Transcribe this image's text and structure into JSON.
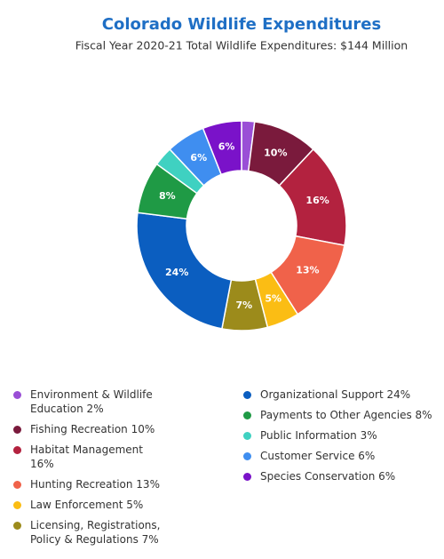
{
  "chart_data": {
    "type": "donut",
    "title": "Colorado Wildlife Expenditures",
    "subtitle": "Fiscal Year 2020-21 Total Wildlife Expenditures: $144 Million",
    "categories": [
      "Environment & Wildlife Education 2%",
      "Fishing Recreation 10%",
      "Habitat Management 16%",
      "Hunting Recreation 13%",
      "Law Enforcement 5%",
      "Licensing, Registrations, Policy & Regulations 7%",
      "Organizational Support 24%",
      "Payments to Other Agencies 8%",
      "Public Information 3%",
      "Customer Service 6%",
      "Species Conservation 6%"
    ],
    "values": [
      2,
      10,
      16,
      13,
      5,
      7,
      24,
      8,
      3,
      6,
      6
    ],
    "value_labels": [
      null,
      "10%",
      "16%",
      "13%",
      "5%",
      "7%",
      "24%",
      "8%",
      null,
      "6%",
      "6%"
    ],
    "colors": [
      "#9a4fd6",
      "#7a1a3c",
      "#b3223f",
      "#f0624a",
      "#fbbd14",
      "#9c8b1b",
      "#0b5ec0",
      "#1f9a45",
      "#3fd1c1",
      "#3f8ef0",
      "#7a12c9"
    ],
    "legend": "bottom"
  }
}
